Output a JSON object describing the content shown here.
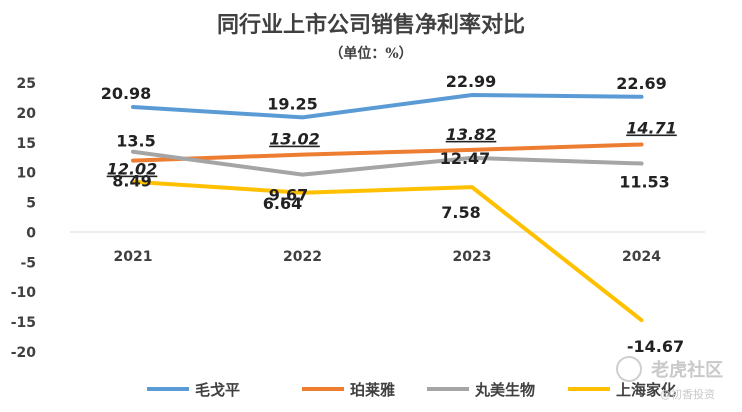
{
  "chart_data": {
    "type": "line",
    "title": "同行业上市公司销售净利率对比",
    "subtitle": "（单位：%）",
    "categories": [
      "2021",
      "2022",
      "2023",
      "2024"
    ],
    "ylim": [
      -20,
      25
    ],
    "yticks": [
      25,
      20,
      15,
      10,
      5,
      0,
      -5,
      -10,
      -15,
      -20
    ],
    "grid": false,
    "legend_position": "bottom",
    "series": [
      {
        "name": "毛戈平",
        "color": "#5B9BD5",
        "values": [
          20.98,
          19.25,
          22.99,
          22.69
        ],
        "labels": [
          "20.98",
          "19.25",
          "22.99",
          "22.69"
        ]
      },
      {
        "name": "珀莱雅",
        "color": "#ED7D31",
        "values": [
          12.02,
          13.02,
          13.82,
          14.71
        ],
        "labels": [
          "12.02",
          "13.02",
          "13.82",
          "14.71"
        ]
      },
      {
        "name": "丸美生物",
        "color": "#A5A5A5",
        "values": [
          13.5,
          9.67,
          12.47,
          11.53
        ],
        "labels": [
          "13.5",
          "9.67",
          "12.47",
          "11.53"
        ]
      },
      {
        "name": "上海家化",
        "color": "#FFC000",
        "values": [
          8.49,
          6.64,
          7.58,
          -14.67
        ],
        "labels": [
          "8.49",
          "6.64",
          "7.58",
          "-14.67"
        ]
      }
    ]
  },
  "watermark": {
    "brand": "老虎社区",
    "handle": "@初香投资"
  }
}
